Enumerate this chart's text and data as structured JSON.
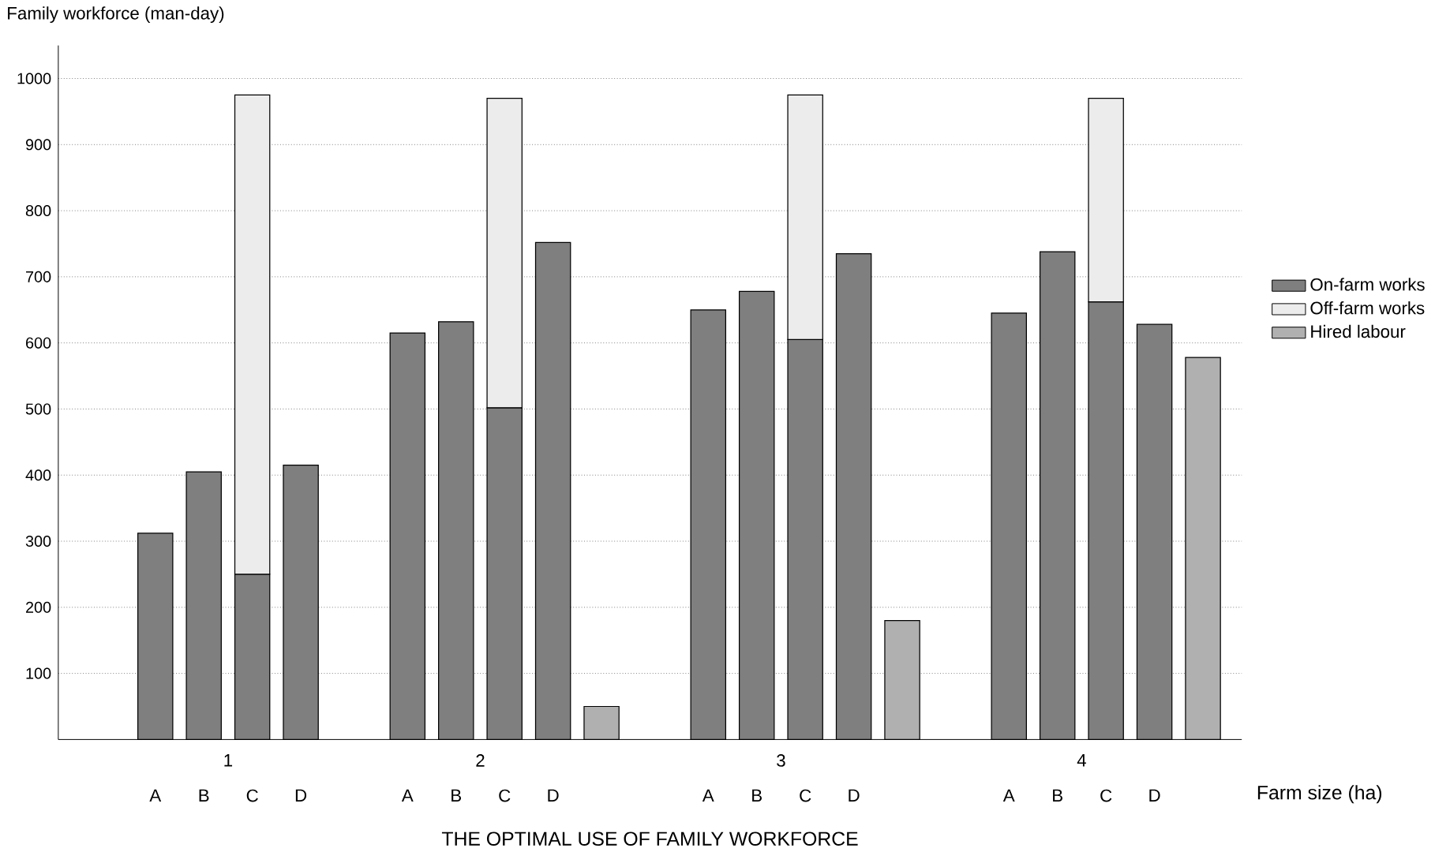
{
  "chart_data": {
    "type": "bar",
    "stacked": true,
    "title": "THE OPTIMAL USE OF FAMILY WORKFORCE",
    "ylabel": "Family workforce (man-day)",
    "xlabel": "Farm size (ha)",
    "categories": [
      "A",
      "B",
      "C",
      "D",
      "A",
      "B",
      "C",
      "D",
      null,
      "A",
      "B",
      "C",
      "D",
      null,
      "A",
      "B",
      "C",
      "D",
      null
    ],
    "series": [
      {
        "name": "On-farm works",
        "color": "#7f7f7f",
        "values": [
          312,
          405,
          250,
          415,
          615,
          632,
          502,
          752,
          null,
          650,
          678,
          605,
          735,
          null,
          645,
          738,
          662,
          628,
          null
        ]
      },
      {
        "name": "Off-farm works",
        "color": "#ececec",
        "values": [
          null,
          null,
          725,
          null,
          null,
          null,
          468,
          null,
          null,
          null,
          null,
          370,
          null,
          null,
          null,
          null,
          308,
          null,
          null
        ]
      },
      {
        "name": "Hired labour",
        "color": "#b0b0b0",
        "values": [
          null,
          null,
          null,
          null,
          null,
          null,
          null,
          null,
          50,
          null,
          null,
          null,
          null,
          180,
          null,
          null,
          null,
          null,
          578
        ]
      }
    ],
    "ylim": [
      0,
      1050
    ],
    "yticks": [
      100,
      200,
      300,
      400,
      500,
      600,
      700,
      800,
      900,
      1000
    ],
    "grid": "y",
    "legend": "right",
    "annotations": [
      "1",
      "2",
      "3",
      "4"
    ]
  }
}
